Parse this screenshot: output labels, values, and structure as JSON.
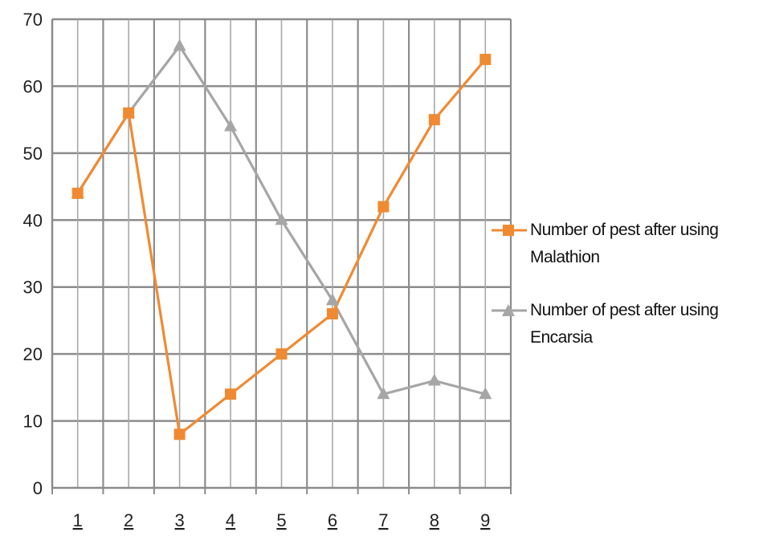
{
  "chart_data": {
    "type": "line",
    "categories": [
      "1",
      "2",
      "3",
      "4",
      "5",
      "6",
      "7",
      "8",
      "9"
    ],
    "series": [
      {
        "name": "Number of pest after using Malathion",
        "values": [
          44,
          56,
          8,
          14,
          20,
          26,
          42,
          55,
          64
        ],
        "color": "#f08a32",
        "marker": "square"
      },
      {
        "name": "Number of pest after using Encarsia",
        "values": [
          44,
          56,
          66,
          54,
          40,
          28,
          14,
          16,
          14
        ],
        "color": "#a6a6a6",
        "marker": "triangle"
      }
    ],
    "ylim": [
      0,
      70
    ],
    "yticks": [
      "0",
      "10",
      "20",
      "30",
      "40",
      "50",
      "60",
      "70"
    ],
    "grid": true,
    "legend_position": "right"
  }
}
